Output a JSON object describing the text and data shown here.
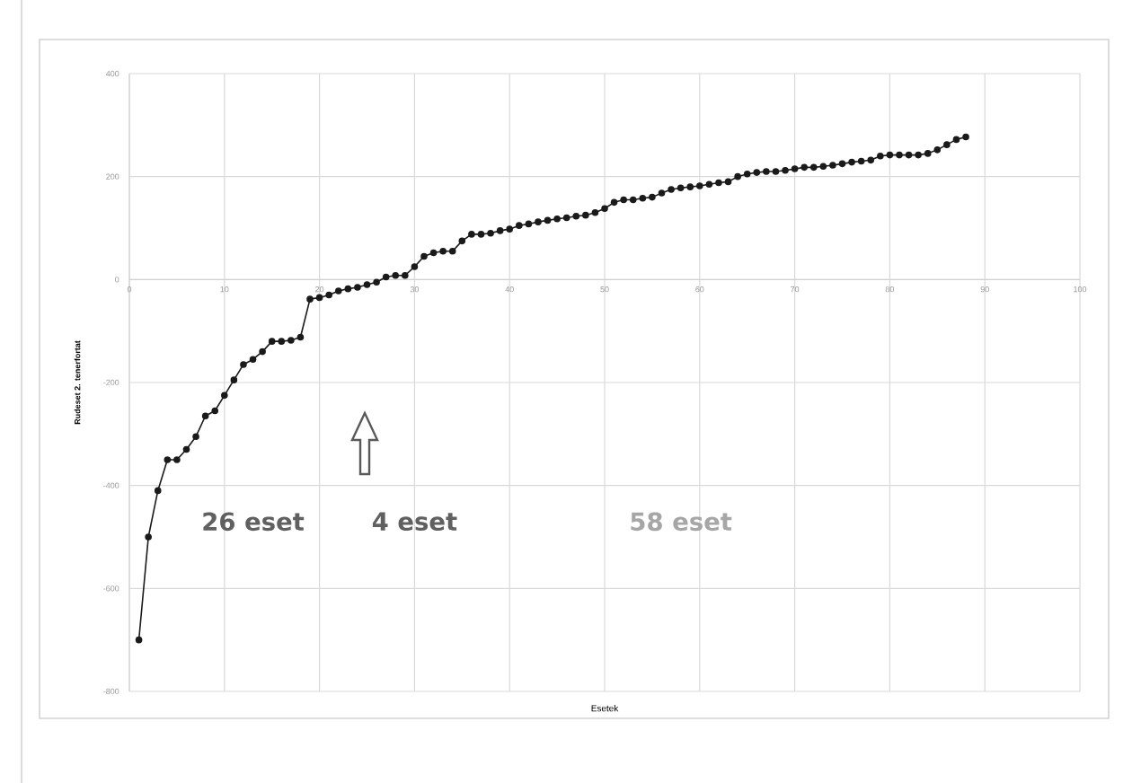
{
  "chart_data": {
    "type": "line",
    "xlabel": "Esetek",
    "ylabel": "Rudeset 2. tenerfortat",
    "x": [
      1,
      2,
      3,
      4,
      5,
      6,
      7,
      8,
      9,
      10,
      11,
      12,
      13,
      14,
      15,
      16,
      17,
      18,
      19,
      20,
      21,
      22,
      23,
      24,
      25,
      26,
      27,
      28,
      29,
      30,
      31,
      32,
      33,
      34,
      35,
      36,
      37,
      38,
      39,
      40,
      41,
      42,
      43,
      44,
      45,
      46,
      47,
      48,
      49,
      50,
      51,
      52,
      53,
      54,
      55,
      56,
      57,
      58,
      59,
      60,
      61,
      62,
      63,
      64,
      65,
      66,
      67,
      68,
      69,
      70,
      71,
      72,
      73,
      74,
      75,
      76,
      77,
      78,
      79,
      80,
      81,
      82,
      83,
      84,
      85,
      86,
      87,
      88
    ],
    "series": [
      {
        "color": "#1a1a1a",
        "values": [
          -700,
          -500,
          -410,
          -350,
          -350,
          -330,
          -305,
          -265,
          -255,
          -225,
          -195,
          -165,
          -155,
          -140,
          -120,
          -120,
          -118,
          -112,
          -38,
          -35,
          -30,
          -22,
          -18,
          -15,
          -10,
          -5,
          5,
          8,
          8,
          25,
          45,
          52,
          55,
          55,
          75,
          88,
          88,
          90,
          95,
          98,
          105,
          108,
          112,
          115,
          118,
          120,
          123,
          125,
          130,
          138,
          150,
          155,
          155,
          158,
          160,
          168,
          175,
          178,
          180,
          182,
          185,
          188,
          190,
          200,
          205,
          208,
          210,
          210,
          212,
          215,
          218,
          218,
          220,
          222,
          225,
          228,
          230,
          232,
          240,
          242,
          242,
          242,
          242,
          245,
          252,
          262,
          272,
          277
        ]
      }
    ],
    "xlim": [
      0,
      100
    ],
    "xticks": [
      0,
      10,
      20,
      30,
      40,
      50,
      60,
      70,
      80,
      90,
      100
    ],
    "ylim": [
      -800,
      400
    ],
    "yticks": [
      -800,
      -600,
      -400,
      -200,
      0,
      200,
      400
    ],
    "grid": true,
    "marker": "circle",
    "line_style": "solid",
    "annotations": [
      "26 eset",
      "4 eset",
      "58 eset"
    ]
  }
}
